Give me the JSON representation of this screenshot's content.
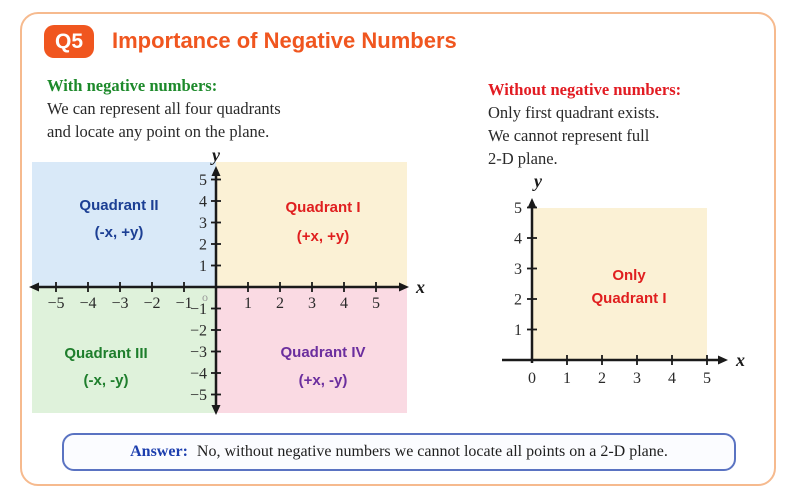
{
  "header": {
    "badge": "Q5",
    "title": "Importance of Negative Numbers",
    "accent_color": "#F0561F"
  },
  "left_panel": {
    "heading": "With negative numbers:",
    "heading_color": "#1D8A2B",
    "lines": [
      "We can represent all four quadrants",
      "and locate any point on the plane."
    ]
  },
  "right_panel": {
    "heading": "Without negative numbers:",
    "heading_color": "#E21B22",
    "lines": [
      "Only first quadrant exists.",
      "We cannot represent full",
      "2-D plane."
    ]
  },
  "chart_data": [
    {
      "type": "coordinate-plane",
      "description": "Full 2-D plane showing all four quadrants",
      "xlabel": "x",
      "ylabel": "y",
      "origin_label": "o",
      "x_ticks": [
        -5,
        -4,
        -3,
        -2,
        -1,
        1,
        2,
        3,
        4,
        5
      ],
      "y_ticks": [
        -5,
        -4,
        -3,
        -2,
        -1,
        1,
        2,
        3,
        4,
        5
      ],
      "xlim": [
        -6,
        6
      ],
      "ylim": [
        -6,
        6
      ],
      "quadrants": [
        {
          "name": "Quadrant I",
          "coords": "(+x, +y)",
          "position": "top-right",
          "bg": "#FBF1D5",
          "text_color": "#E01F1F"
        },
        {
          "name": "Quadrant II",
          "coords": "(-x, +y)",
          "position": "top-left",
          "bg": "#D9E9F8",
          "text_color": "#1C3F94"
        },
        {
          "name": "Quadrant III",
          "coords": "(-x, -y)",
          "position": "bottom-left",
          "bg": "#DFF2DB",
          "text_color": "#1E7E2C"
        },
        {
          "name": "Quadrant IV",
          "coords": "(+x, -y)",
          "position": "bottom-right",
          "bg": "#FADAE3",
          "text_color": "#6B2E9E"
        }
      ]
    },
    {
      "type": "coordinate-plane",
      "description": "Only the first quadrant (no negative numbers)",
      "xlabel": "x",
      "ylabel": "y",
      "x_ticks": [
        0,
        1,
        2,
        3,
        4,
        5
      ],
      "y_ticks": [
        1,
        2,
        3,
        4,
        5
      ],
      "xlim": [
        -1,
        6
      ],
      "ylim": [
        0,
        6
      ],
      "region": {
        "label_lines": [
          "Only",
          "Quadrant I"
        ],
        "bg": "#FBF1D5",
        "text_color": "#E01F1F"
      }
    }
  ],
  "answer": {
    "label": "Answer:",
    "text": "No, without negative numbers we cannot locate all points on a 2-D plane."
  }
}
